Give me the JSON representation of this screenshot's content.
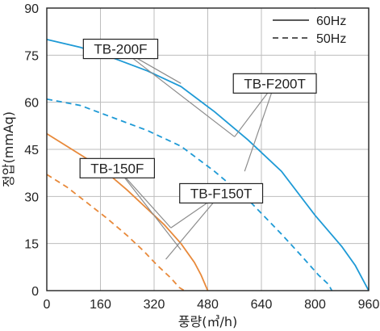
{
  "chart_data": {
    "type": "line",
    "xlabel": "풍량(㎥/h)",
    "ylabel": "정압(mmAq)",
    "xlim": [
      0,
      960
    ],
    "ylim": [
      0,
      90
    ],
    "xticks": [
      0,
      160,
      320,
      480,
      640,
      800,
      960
    ],
    "yticks": [
      0,
      15,
      30,
      45,
      60,
      75,
      90
    ],
    "grid": true,
    "legend": {
      "placement": "top-right",
      "entries": [
        {
          "label": "60Hz",
          "style": "solid"
        },
        {
          "label": "50Hz",
          "style": "dashed"
        }
      ]
    },
    "colors": {
      "blue": "#1e9ad6",
      "orange": "#e8893a",
      "grid": "#bdbdbd",
      "axis": "#222222"
    },
    "series": [
      {
        "name": "TB-F200T",
        "freq": "60Hz",
        "color": "blue",
        "style": "solid",
        "x": [
          0,
          100,
          200,
          300,
          400,
          500,
          600,
          700,
          800,
          880,
          920,
          960
        ],
        "y": [
          80,
          77.5,
          74,
          70,
          65,
          57,
          48,
          38,
          24,
          14,
          8,
          0
        ]
      },
      {
        "name": "TB-F200T",
        "freq": "50Hz",
        "color": "blue",
        "style": "dashed",
        "x": [
          0,
          100,
          200,
          300,
          400,
          500,
          600,
          700,
          760,
          810,
          840,
          850
        ],
        "y": [
          61,
          59,
          55,
          51,
          46,
          38,
          29,
          18,
          11,
          5,
          2,
          0
        ]
      },
      {
        "name": "TB-F150T",
        "freq": "60Hz",
        "color": "orange",
        "style": "solid",
        "x": [
          0,
          60,
          120,
          180,
          240,
          300,
          350,
          400,
          440,
          460,
          480
        ],
        "y": [
          50,
          46,
          42,
          37.5,
          32,
          26,
          21,
          15,
          9,
          5,
          0
        ]
      },
      {
        "name": "TB-F150T",
        "freq": "50Hz",
        "color": "orange",
        "style": "dashed",
        "x": [
          0,
          60,
          120,
          180,
          240,
          290,
          330,
          370,
          395,
          410
        ],
        "y": [
          37,
          33,
          28,
          23,
          17.5,
          12.5,
          8,
          4,
          1,
          0
        ]
      }
    ],
    "annotations": [
      {
        "text": "TB-200F",
        "box_at": [
          220,
          77
        ],
        "points_to": [
          [
            400,
            66
          ],
          [
            560,
            49
          ]
        ]
      },
      {
        "text": "TB-F200T",
        "box_at": [
          680,
          66
        ],
        "points_to": [
          [
            560,
            49
          ],
          [
            590,
            38
          ]
        ]
      },
      {
        "text": "TB-150F",
        "box_at": [
          210,
          39
        ],
        "points_to": [
          [
            370,
            20
          ],
          [
            400,
            13
          ]
        ]
      },
      {
        "text": "TB-F150T",
        "box_at": [
          520,
          31
        ],
        "points_to": [
          [
            370,
            20
          ],
          [
            355,
            10
          ]
        ]
      }
    ]
  }
}
